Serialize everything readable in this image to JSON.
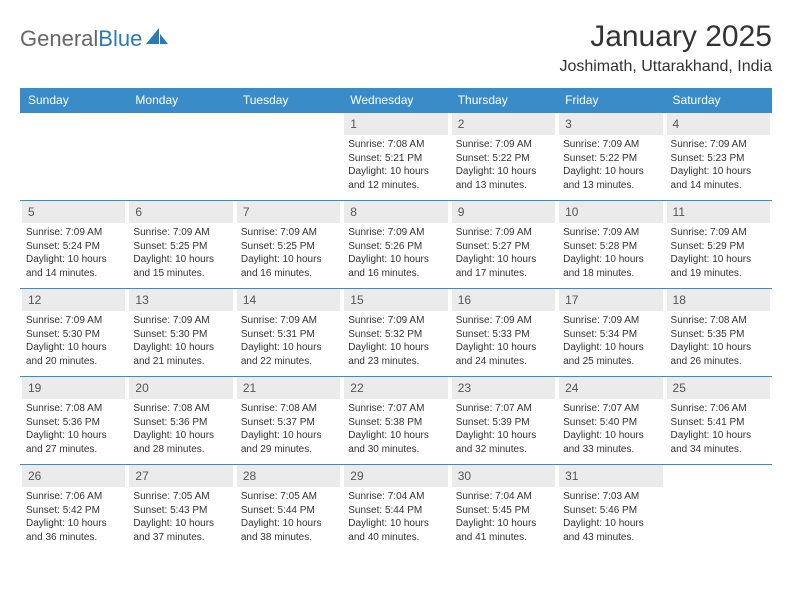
{
  "brand": {
    "part1": "General",
    "part2": "Blue"
  },
  "title": "January 2025",
  "location": "Joshimath, Uttarakhand, India",
  "colors": {
    "header_bg": "#3a8cc9",
    "header_text": "#ffffff",
    "daynum_bg": "#ebebeb",
    "row_border": "#3a8cc9",
    "logo_gray": "#666666",
    "logo_blue": "#2a7ab8"
  },
  "weekdays": [
    "Sunday",
    "Monday",
    "Tuesday",
    "Wednesday",
    "Thursday",
    "Friday",
    "Saturday"
  ],
  "weeks": [
    [
      {
        "day": "",
        "sunrise": "",
        "sunset": "",
        "daylight": ""
      },
      {
        "day": "",
        "sunrise": "",
        "sunset": "",
        "daylight": ""
      },
      {
        "day": "",
        "sunrise": "",
        "sunset": "",
        "daylight": ""
      },
      {
        "day": "1",
        "sunrise": "Sunrise: 7:08 AM",
        "sunset": "Sunset: 5:21 PM",
        "daylight": "Daylight: 10 hours and 12 minutes."
      },
      {
        "day": "2",
        "sunrise": "Sunrise: 7:09 AM",
        "sunset": "Sunset: 5:22 PM",
        "daylight": "Daylight: 10 hours and 13 minutes."
      },
      {
        "day": "3",
        "sunrise": "Sunrise: 7:09 AM",
        "sunset": "Sunset: 5:22 PM",
        "daylight": "Daylight: 10 hours and 13 minutes."
      },
      {
        "day": "4",
        "sunrise": "Sunrise: 7:09 AM",
        "sunset": "Sunset: 5:23 PM",
        "daylight": "Daylight: 10 hours and 14 minutes."
      }
    ],
    [
      {
        "day": "5",
        "sunrise": "Sunrise: 7:09 AM",
        "sunset": "Sunset: 5:24 PM",
        "daylight": "Daylight: 10 hours and 14 minutes."
      },
      {
        "day": "6",
        "sunrise": "Sunrise: 7:09 AM",
        "sunset": "Sunset: 5:25 PM",
        "daylight": "Daylight: 10 hours and 15 minutes."
      },
      {
        "day": "7",
        "sunrise": "Sunrise: 7:09 AM",
        "sunset": "Sunset: 5:25 PM",
        "daylight": "Daylight: 10 hours and 16 minutes."
      },
      {
        "day": "8",
        "sunrise": "Sunrise: 7:09 AM",
        "sunset": "Sunset: 5:26 PM",
        "daylight": "Daylight: 10 hours and 16 minutes."
      },
      {
        "day": "9",
        "sunrise": "Sunrise: 7:09 AM",
        "sunset": "Sunset: 5:27 PM",
        "daylight": "Daylight: 10 hours and 17 minutes."
      },
      {
        "day": "10",
        "sunrise": "Sunrise: 7:09 AM",
        "sunset": "Sunset: 5:28 PM",
        "daylight": "Daylight: 10 hours and 18 minutes."
      },
      {
        "day": "11",
        "sunrise": "Sunrise: 7:09 AM",
        "sunset": "Sunset: 5:29 PM",
        "daylight": "Daylight: 10 hours and 19 minutes."
      }
    ],
    [
      {
        "day": "12",
        "sunrise": "Sunrise: 7:09 AM",
        "sunset": "Sunset: 5:30 PM",
        "daylight": "Daylight: 10 hours and 20 minutes."
      },
      {
        "day": "13",
        "sunrise": "Sunrise: 7:09 AM",
        "sunset": "Sunset: 5:30 PM",
        "daylight": "Daylight: 10 hours and 21 minutes."
      },
      {
        "day": "14",
        "sunrise": "Sunrise: 7:09 AM",
        "sunset": "Sunset: 5:31 PM",
        "daylight": "Daylight: 10 hours and 22 minutes."
      },
      {
        "day": "15",
        "sunrise": "Sunrise: 7:09 AM",
        "sunset": "Sunset: 5:32 PM",
        "daylight": "Daylight: 10 hours and 23 minutes."
      },
      {
        "day": "16",
        "sunrise": "Sunrise: 7:09 AM",
        "sunset": "Sunset: 5:33 PM",
        "daylight": "Daylight: 10 hours and 24 minutes."
      },
      {
        "day": "17",
        "sunrise": "Sunrise: 7:09 AM",
        "sunset": "Sunset: 5:34 PM",
        "daylight": "Daylight: 10 hours and 25 minutes."
      },
      {
        "day": "18",
        "sunrise": "Sunrise: 7:08 AM",
        "sunset": "Sunset: 5:35 PM",
        "daylight": "Daylight: 10 hours and 26 minutes."
      }
    ],
    [
      {
        "day": "19",
        "sunrise": "Sunrise: 7:08 AM",
        "sunset": "Sunset: 5:36 PM",
        "daylight": "Daylight: 10 hours and 27 minutes."
      },
      {
        "day": "20",
        "sunrise": "Sunrise: 7:08 AM",
        "sunset": "Sunset: 5:36 PM",
        "daylight": "Daylight: 10 hours and 28 minutes."
      },
      {
        "day": "21",
        "sunrise": "Sunrise: 7:08 AM",
        "sunset": "Sunset: 5:37 PM",
        "daylight": "Daylight: 10 hours and 29 minutes."
      },
      {
        "day": "22",
        "sunrise": "Sunrise: 7:07 AM",
        "sunset": "Sunset: 5:38 PM",
        "daylight": "Daylight: 10 hours and 30 minutes."
      },
      {
        "day": "23",
        "sunrise": "Sunrise: 7:07 AM",
        "sunset": "Sunset: 5:39 PM",
        "daylight": "Daylight: 10 hours and 32 minutes."
      },
      {
        "day": "24",
        "sunrise": "Sunrise: 7:07 AM",
        "sunset": "Sunset: 5:40 PM",
        "daylight": "Daylight: 10 hours and 33 minutes."
      },
      {
        "day": "25",
        "sunrise": "Sunrise: 7:06 AM",
        "sunset": "Sunset: 5:41 PM",
        "daylight": "Daylight: 10 hours and 34 minutes."
      }
    ],
    [
      {
        "day": "26",
        "sunrise": "Sunrise: 7:06 AM",
        "sunset": "Sunset: 5:42 PM",
        "daylight": "Daylight: 10 hours and 36 minutes."
      },
      {
        "day": "27",
        "sunrise": "Sunrise: 7:05 AM",
        "sunset": "Sunset: 5:43 PM",
        "daylight": "Daylight: 10 hours and 37 minutes."
      },
      {
        "day": "28",
        "sunrise": "Sunrise: 7:05 AM",
        "sunset": "Sunset: 5:44 PM",
        "daylight": "Daylight: 10 hours and 38 minutes."
      },
      {
        "day": "29",
        "sunrise": "Sunrise: 7:04 AM",
        "sunset": "Sunset: 5:44 PM",
        "daylight": "Daylight: 10 hours and 40 minutes."
      },
      {
        "day": "30",
        "sunrise": "Sunrise: 7:04 AM",
        "sunset": "Sunset: 5:45 PM",
        "daylight": "Daylight: 10 hours and 41 minutes."
      },
      {
        "day": "31",
        "sunrise": "Sunrise: 7:03 AM",
        "sunset": "Sunset: 5:46 PM",
        "daylight": "Daylight: 10 hours and 43 minutes."
      },
      {
        "day": "",
        "sunrise": "",
        "sunset": "",
        "daylight": ""
      }
    ]
  ]
}
